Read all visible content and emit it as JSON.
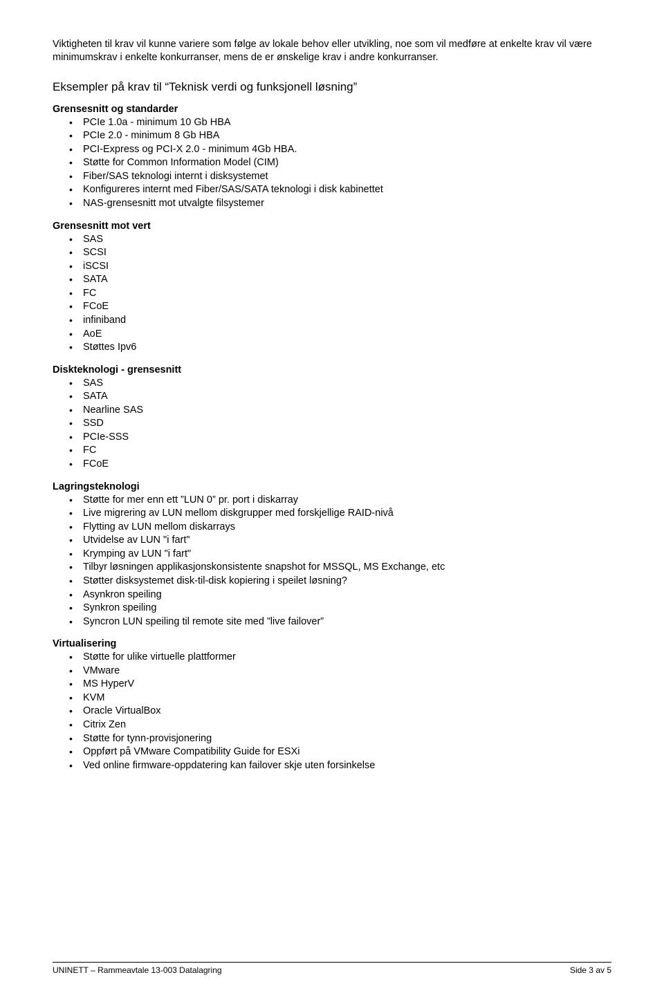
{
  "intro": "Viktigheten til krav vil kunne variere som følge av lokale behov eller utvikling, noe som vil medføre at enkelte krav vil være minimumskrav i enkelte konkurranser, mens de er ønskelige krav i andre konkurranser.",
  "sectionTitle": {
    "prefix": "Eksempler på krav til ",
    "quoted": "“Teknisk verdi og funksjonell løsning”"
  },
  "groups": {
    "grensesnitt_standarder": {
      "heading": "Grensesnitt og standarder",
      "items": [
        "PCIe 1.0a - minimum 10 Gb HBA",
        "PCIe 2.0 - minimum 8 Gb HBA",
        "PCI-Express og PCI-X 2.0 - minimum 4Gb HBA.",
        "Støtte for Common Information Model (CIM)",
        "Fiber/SAS teknologi internt i disksystemet",
        "Konfigureres internt med Fiber/SAS/SATA teknologi i disk kabinettet",
        "NAS-grensesnitt mot utvalgte filsystemer"
      ]
    },
    "grensesnitt_vert": {
      "heading": "Grensesnitt mot vert",
      "items": [
        "SAS",
        "SCSI",
        "iSCSI",
        "SATA",
        "FC",
        "FCoE",
        "infiniband",
        "AoE",
        "Støttes Ipv6"
      ]
    },
    "diskteknologi": {
      "heading": "Diskteknologi - grensesnitt",
      "items": [
        "SAS",
        "SATA",
        "Nearline SAS",
        "SSD",
        "PCIe-SSS",
        "FC",
        "FCoE"
      ]
    },
    "lagringsteknologi": {
      "heading": "Lagringsteknologi",
      "items": [
        "Støtte for mer enn ett ”LUN 0” pr. port i diskarray",
        "Live migrering av LUN mellom diskgrupper med forskjellige RAID-nivå",
        "Flytting av LUN mellom diskarrays",
        "Utvidelse av LUN \"i fart\"",
        "Krymping av LUN \"i fart\"",
        "Tilbyr løsningen applikasjonskonsistente snapshot for MSSQL, MS Exchange, etc",
        "Støtter disksystemet disk-til-disk kopiering i speilet løsning?",
        "Asynkron speiling",
        "Synkron speiling",
        "Syncron LUN speiling til remote site med ”live failover”"
      ]
    },
    "virtualisering": {
      "heading": "Virtualisering",
      "items": [
        "Støtte for ulike virtuelle plattformer",
        "VMware",
        "MS HyperV",
        "KVM",
        "Oracle VirtualBox",
        "Citrix Zen",
        "Støtte for tynn-provisjonering",
        "Oppført på VMware Compatibility Guide for ESXi",
        "Ved online firmware-oppdatering kan failover skje uten forsinkelse"
      ]
    }
  },
  "footer": {
    "left": "UNINETT – Rammeavtale 13-003 Datalagring",
    "right": "Side 3 av 5"
  }
}
